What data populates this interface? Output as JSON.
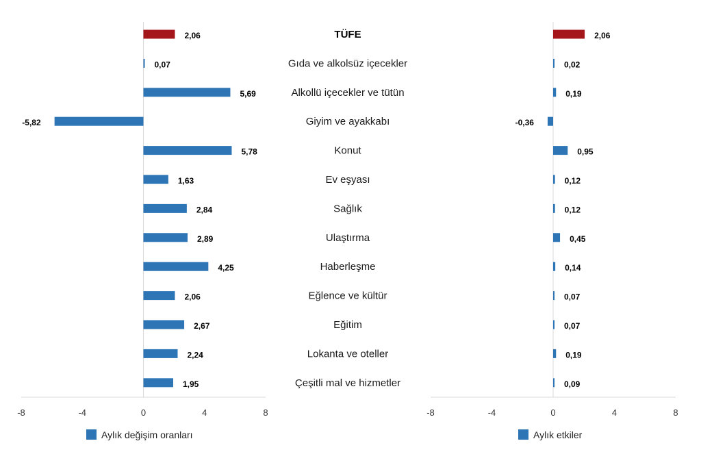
{
  "chart_data": [
    {
      "type": "bar",
      "orientation": "horizontal",
      "categories": [
        "TÜFE",
        "Gıda ve alkolsüz içecekler",
        "Alkollü içecekler ve tütün",
        "Giyim ve ayakkabı",
        "Konut",
        "Ev eşyası",
        "Sağlık",
        "Ulaştırma",
        "Haberleşme",
        "Eğlence ve kültür",
        "Eğitim",
        "Lokanta ve oteller",
        "Çeşitli mal ve hizmetler"
      ],
      "series": [
        {
          "name": "Aylık değişim oranları",
          "values": [
            2.06,
            0.07,
            5.69,
            -5.82,
            5.78,
            1.63,
            2.84,
            2.89,
            4.25,
            2.06,
            2.67,
            2.24,
            1.95
          ],
          "value_labels": [
            "2,06",
            "0,07",
            "5,69",
            "-5,82",
            "5,78",
            "1,63",
            "2,84",
            "2,89",
            "4,25",
            "2,06",
            "2,67",
            "2,24",
            "1,95"
          ],
          "color": "#2E75B6",
          "highlight_color": "#A5161B",
          "highlight_index": 0
        }
      ],
      "xlim": [
        -8,
        8
      ],
      "xticks": [
        -8,
        -4,
        0,
        4,
        8
      ],
      "xtick_labels": [
        "-8",
        "-4",
        "0",
        "4",
        "8"
      ],
      "legend_position": "bottom-center",
      "grid": false
    },
    {
      "type": "bar",
      "orientation": "horizontal",
      "categories": [
        "TÜFE",
        "Gıda ve alkolsüz içecekler",
        "Alkollü içecekler ve tütün",
        "Giyim ve ayakkabı",
        "Konut",
        "Ev eşyası",
        "Sağlık",
        "Ulaştırma",
        "Haberleşme",
        "Eğlence ve kültür",
        "Eğitim",
        "Lokanta ve oteller",
        "Çeşitli mal ve hizmetler"
      ],
      "series": [
        {
          "name": "Aylık etkiler",
          "values": [
            2.06,
            0.02,
            0.19,
            -0.36,
            0.95,
            0.12,
            0.12,
            0.45,
            0.14,
            0.07,
            0.07,
            0.19,
            0.09
          ],
          "value_labels": [
            "2,06",
            "0,02",
            "0,19",
            "-0,36",
            "0,95",
            "0,12",
            "0,12",
            "0,45",
            "0,14",
            "0,07",
            "0,07",
            "0,19",
            "0,09"
          ],
          "color": "#2E75B6",
          "highlight_color": "#A5161B",
          "highlight_index": 0
        }
      ],
      "xlim": [
        -8,
        8
      ],
      "xticks": [
        -8,
        -4,
        0,
        4,
        8
      ],
      "xtick_labels": [
        "-8",
        "-4",
        "0",
        "4",
        "8"
      ],
      "legend_position": "bottom-center",
      "grid": false
    }
  ],
  "category_labels": {
    "items": [
      "TÜFE",
      "Gıda ve alkolsüz içecekler",
      "Alkollü içecekler ve tütün",
      "Giyim ve ayakkabı",
      "Konut",
      "Ev eşyası",
      "Sağlık",
      "Ulaştırma",
      "Haberleşme",
      "Eğlence ve kültür",
      "Eğitim",
      "Lokanta ve oteller",
      "Çeşitli mal ve hizmetler"
    ],
    "bold_index": 0
  },
  "colors": {
    "bar": "#2E75B6",
    "highlight": "#A5161B",
    "axis": "#D9D9D9"
  }
}
